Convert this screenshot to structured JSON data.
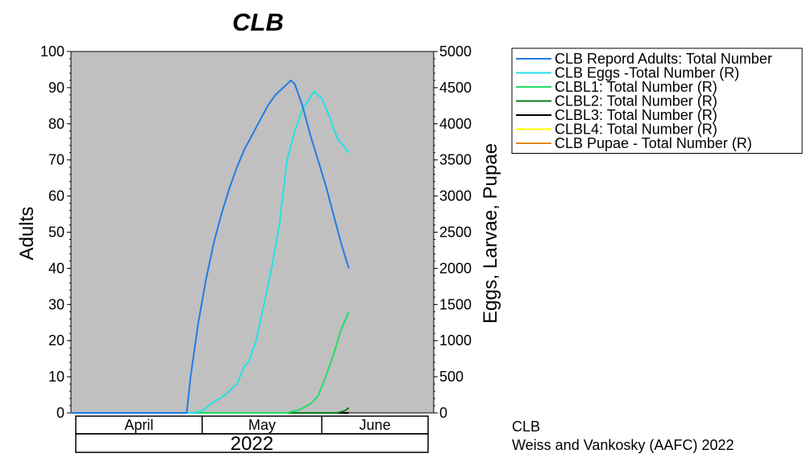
{
  "chart_data": {
    "type": "line",
    "title": "CLB",
    "ylabel": "Adults",
    "y2label": "Eggs, Larvae, Pupae",
    "ylim": [
      0,
      100
    ],
    "y2lim": [
      0,
      5000
    ],
    "yticks": [
      0,
      10,
      20,
      30,
      40,
      50,
      60,
      70,
      80,
      90,
      100
    ],
    "y2ticks": [
      0,
      500,
      1000,
      1500,
      2000,
      2500,
      3000,
      3500,
      4000,
      4500,
      5000
    ],
    "xlim": [
      "2022-03-28",
      "2022-06-30"
    ],
    "months": [
      {
        "label": "April",
        "start": "2022-03-28",
        "end": "2022-05-01"
      },
      {
        "label": "May",
        "start": "2022-05-01",
        "end": "2022-06-01"
      },
      {
        "label": "June",
        "start": "2022-06-01",
        "end": "2022-06-30"
      }
    ],
    "year_label": "2022",
    "background": "#c0c0c0",
    "grid": false,
    "legend_position": "right",
    "series": [
      {
        "name": "CLB  Repord Adults: Total Number",
        "axis": "left",
        "color": "#1e7ce6",
        "points": [
          [
            "2022-03-28",
            0
          ],
          [
            "2022-04-27",
            0
          ],
          [
            "2022-04-28",
            10
          ],
          [
            "2022-04-30",
            25
          ],
          [
            "2022-05-02",
            37
          ],
          [
            "2022-05-04",
            47
          ],
          [
            "2022-05-06",
            55
          ],
          [
            "2022-05-08",
            62
          ],
          [
            "2022-05-10",
            68
          ],
          [
            "2022-05-12",
            73
          ],
          [
            "2022-05-14",
            77
          ],
          [
            "2022-05-16",
            81
          ],
          [
            "2022-05-18",
            85
          ],
          [
            "2022-05-20",
            88
          ],
          [
            "2022-05-22",
            90
          ],
          [
            "2022-05-24",
            92
          ],
          [
            "2022-05-25",
            91
          ],
          [
            "2022-05-27",
            85
          ],
          [
            "2022-05-29",
            77
          ],
          [
            "2022-05-31",
            70
          ],
          [
            "2022-06-02",
            63
          ],
          [
            "2022-06-04",
            55
          ],
          [
            "2022-06-06",
            47
          ],
          [
            "2022-06-08",
            40
          ]
        ]
      },
      {
        "name": "CLB Eggs -Total Number (R)",
        "axis": "right",
        "color": "#22e0e8",
        "points": [
          [
            "2022-03-28",
            0
          ],
          [
            "2022-04-29",
            0
          ],
          [
            "2022-05-01",
            30
          ],
          [
            "2022-05-04",
            150
          ],
          [
            "2022-05-07",
            250
          ],
          [
            "2022-05-10",
            400
          ],
          [
            "2022-05-12",
            650
          ],
          [
            "2022-05-13",
            700
          ],
          [
            "2022-05-15",
            1000
          ],
          [
            "2022-05-17",
            1500
          ],
          [
            "2022-05-19",
            2000
          ],
          [
            "2022-05-21",
            2600
          ],
          [
            "2022-05-23",
            3500
          ],
          [
            "2022-05-25",
            3900
          ],
          [
            "2022-05-27",
            4200
          ],
          [
            "2022-05-30",
            4450
          ],
          [
            "2022-06-01",
            4350
          ],
          [
            "2022-06-03",
            4100
          ],
          [
            "2022-06-05",
            3800
          ],
          [
            "2022-06-08",
            3600
          ]
        ]
      },
      {
        "name": "CLBL1: Total Number (R)",
        "axis": "right",
        "color": "#22dd66",
        "points": [
          [
            "2022-03-28",
            0
          ],
          [
            "2022-05-23",
            0
          ],
          [
            "2022-05-26",
            40
          ],
          [
            "2022-05-29",
            120
          ],
          [
            "2022-05-31",
            230
          ],
          [
            "2022-06-02",
            500
          ],
          [
            "2022-06-04",
            800
          ],
          [
            "2022-06-06",
            1150
          ],
          [
            "2022-06-08",
            1400
          ]
        ]
      },
      {
        "name": "CLBL2: Total Number (R)",
        "axis": "right",
        "color": "#0a7a1a",
        "points": [
          [
            "2022-03-28",
            0
          ],
          [
            "2022-06-05",
            0
          ],
          [
            "2022-06-07",
            30
          ],
          [
            "2022-06-08",
            70
          ]
        ]
      },
      {
        "name": "CLBL3: Total Number (R)",
        "axis": "right",
        "color": "#000000",
        "points": [
          [
            "2022-03-28",
            0
          ],
          [
            "2022-06-08",
            0
          ]
        ]
      },
      {
        "name": "CLBL4: Total Number (R)",
        "axis": "right",
        "color": "#ffff00",
        "points": [
          [
            "2022-03-28",
            0
          ],
          [
            "2022-06-08",
            0
          ]
        ]
      },
      {
        "name": "CLB Pupae - Total Number (R)",
        "axis": "right",
        "color": "#e08a1e",
        "points": [
          [
            "2022-03-28",
            0
          ],
          [
            "2022-06-08",
            0
          ]
        ]
      }
    ]
  },
  "credits": {
    "line1": "CLB",
    "line2": "Weiss and Vankosky  (AAFC) 2022"
  }
}
